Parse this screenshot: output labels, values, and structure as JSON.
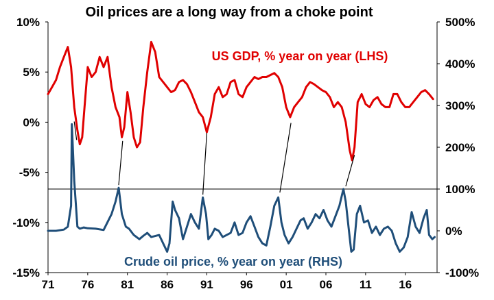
{
  "chart_data": {
    "type": "line",
    "title": "Oil prices are a long way from a choke point",
    "x_tick_labels": [
      "71",
      "76",
      "81",
      "86",
      "91",
      "96",
      "01",
      "06",
      "11",
      "16"
    ],
    "x_ticks": [
      1971,
      1976,
      1981,
      1986,
      1991,
      1996,
      2001,
      2006,
      2011,
      2016
    ],
    "xlim": [
      1971,
      2020
    ],
    "left_axis": {
      "tick_labels": [
        "10%",
        "5%",
        "0%",
        "-5%",
        "-10%",
        "-15%"
      ],
      "ticks": [
        10,
        5,
        0,
        -5,
        -10,
        -15
      ],
      "ylim": [
        -15,
        10
      ]
    },
    "right_axis": {
      "tick_labels": [
        "500%",
        "400%",
        "300%",
        "200%",
        "100%",
        "0%",
        "-100%"
      ],
      "ticks": [
        500,
        400,
        300,
        200,
        100,
        0,
        -100
      ],
      "ylim": [
        -100,
        500
      ]
    },
    "reference_line": {
      "axis": "right",
      "value": 100
    },
    "annotations": [
      {
        "text": "US GDP, % year on year (LHS)",
        "color": "#e00000"
      },
      {
        "text": "Crude oil price, % year on year (RHS)",
        "color": "#1f4e79"
      }
    ],
    "series": [
      {
        "axis": "left",
        "color": "#e00000",
        "x": [
          1971.0,
          1971.5,
          1972.0,
          1972.5,
          1973.0,
          1973.5,
          1973.9,
          1974.3,
          1974.7,
          1975.0,
          1975.3,
          1975.6,
          1976.0,
          1976.5,
          1977.0,
          1977.5,
          1978.0,
          1978.5,
          1979.0,
          1979.5,
          1980.0,
          1980.3,
          1980.6,
          1981.0,
          1981.4,
          1981.8,
          1982.2,
          1982.6,
          1983.0,
          1983.5,
          1984.0,
          1984.5,
          1985.0,
          1985.5,
          1986.0,
          1986.5,
          1987.0,
          1987.5,
          1988.0,
          1988.5,
          1989.0,
          1989.5,
          1990.0,
          1990.5,
          1991.0,
          1991.5,
          1992.0,
          1992.5,
          1993.0,
          1993.5,
          1994.0,
          1994.5,
          1995.0,
          1995.5,
          1996.0,
          1996.5,
          1997.0,
          1997.5,
          1998.0,
          1998.5,
          1999.0,
          1999.5,
          2000.0,
          2000.5,
          2001.0,
          2001.5,
          2002.0,
          2002.5,
          2003.0,
          2003.5,
          2004.0,
          2004.5,
          2005.0,
          2005.5,
          2006.0,
          2006.5,
          2007.0,
          2007.5,
          2008.0,
          2008.5,
          2009.0,
          2009.3,
          2009.6,
          2010.0,
          2010.5,
          2011.0,
          2011.5,
          2012.0,
          2012.5,
          2013.0,
          2013.5,
          2014.0,
          2014.5,
          2015.0,
          2015.5,
          2016.0,
          2016.5,
          2017.0,
          2017.5,
          2018.0,
          2018.5,
          2019.0,
          2019.5
        ],
        "values": [
          2.8,
          3.5,
          4.2,
          5.5,
          6.5,
          7.5,
          5.5,
          1.5,
          -0.8,
          -2.2,
          -1.5,
          1.5,
          5.5,
          4.5,
          5.0,
          6.5,
          5.5,
          6.5,
          3.5,
          1.5,
          0.5,
          -1.5,
          -0.5,
          3.0,
          1.0,
          -1.5,
          -2.5,
          -2.0,
          1.5,
          5.0,
          8.0,
          7.0,
          4.5,
          4.0,
          3.5,
          3.0,
          3.2,
          4.0,
          4.2,
          3.8,
          3.0,
          2.0,
          1.0,
          0.5,
          -1.0,
          0.5,
          2.8,
          3.5,
          2.5,
          2.8,
          4.0,
          4.2,
          2.8,
          2.5,
          3.5,
          4.0,
          4.5,
          4.3,
          4.5,
          4.5,
          4.7,
          4.9,
          4.5,
          3.5,
          1.5,
          0.5,
          1.5,
          2.0,
          2.5,
          3.5,
          4.0,
          3.8,
          3.5,
          3.2,
          3.0,
          2.5,
          1.5,
          2.0,
          1.5,
          0.0,
          -2.8,
          -3.8,
          -2.5,
          2.0,
          2.8,
          1.8,
          1.5,
          2.2,
          2.5,
          1.8,
          1.5,
          1.5,
          2.8,
          2.8,
          2.0,
          1.5,
          1.5,
          2.0,
          2.5,
          3.0,
          3.2,
          2.8,
          2.3
        ]
      },
      {
        "axis": "right",
        "color": "#1f4e79",
        "x": [
          1971.0,
          1972.0,
          1973.0,
          1973.5,
          1973.9,
          1974.0,
          1974.3,
          1974.7,
          1975.0,
          1975.5,
          1976.0,
          1977.0,
          1978.0,
          1979.0,
          1979.5,
          1979.9,
          1980.3,
          1980.8,
          1981.2,
          1981.8,
          1982.5,
          1983.0,
          1983.5,
          1984.0,
          1985.0,
          1986.0,
          1986.3,
          1986.7,
          1987.0,
          1987.5,
          1988.0,
          1988.5,
          1989.0,
          1989.5,
          1990.0,
          1990.5,
          1990.9,
          1991.2,
          1991.6,
          1992.0,
          1992.5,
          1993.0,
          1993.5,
          1994.0,
          1994.5,
          1995.0,
          1995.5,
          1996.0,
          1996.5,
          1997.0,
          1997.5,
          1998.0,
          1998.5,
          1999.0,
          1999.5,
          2000.0,
          2000.4,
          2000.8,
          2001.3,
          2001.8,
          2002.3,
          2002.8,
          2003.2,
          2003.7,
          2004.2,
          2004.7,
          2005.2,
          2005.7,
          2006.2,
          2006.7,
          2007.2,
          2007.7,
          2008.2,
          2008.5,
          2008.9,
          2009.2,
          2009.5,
          2009.9,
          2010.3,
          2010.8,
          2011.3,
          2011.8,
          2012.3,
          2012.8,
          2013.3,
          2013.8,
          2014.3,
          2014.8,
          2015.3,
          2015.8,
          2016.3,
          2016.8,
          2017.3,
          2017.8,
          2018.3,
          2018.7,
          2019.0,
          2019.4,
          2019.7
        ],
        "values": [
          0,
          0,
          3,
          10,
          60,
          255,
          120,
          10,
          5,
          8,
          6,
          5,
          2,
          40,
          70,
          103,
          40,
          10,
          5,
          -10,
          -20,
          -12,
          -5,
          -15,
          -10,
          -50,
          -30,
          70,
          50,
          30,
          -20,
          10,
          40,
          20,
          5,
          80,
          40,
          -20,
          -10,
          5,
          0,
          -15,
          -10,
          -5,
          20,
          -10,
          -5,
          20,
          35,
          10,
          -15,
          -30,
          -35,
          10,
          60,
          80,
          20,
          -10,
          -30,
          -15,
          5,
          25,
          30,
          5,
          20,
          40,
          30,
          50,
          25,
          10,
          35,
          60,
          100,
          70,
          0,
          -50,
          -45,
          40,
          60,
          20,
          25,
          -5,
          10,
          -10,
          5,
          10,
          0,
          -30,
          -50,
          -40,
          -15,
          45,
          10,
          -5,
          30,
          50,
          -10,
          -20,
          -15
        ]
      }
    ]
  }
}
